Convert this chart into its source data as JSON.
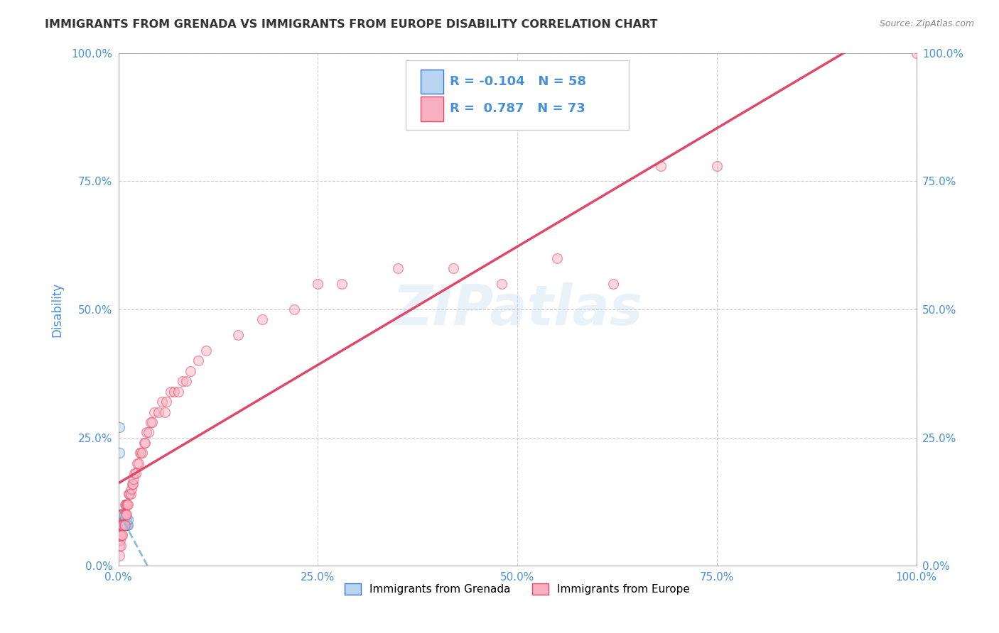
{
  "title": "IMMIGRANTS FROM GRENADA VS IMMIGRANTS FROM EUROPE DISABILITY CORRELATION CHART",
  "source": "Source: ZipAtlas.com",
  "ylabel": "Disability",
  "xlabel": "",
  "watermark": "ZIPatlas",
  "legend_label1": "Immigrants from Grenada",
  "legend_label2": "Immigrants from Europe",
  "r1": -0.104,
  "n1": 58,
  "r2": 0.787,
  "n2": 73,
  "color1_face": "#b8d4f0",
  "color1_edge": "#3a78c9",
  "color2_face": "#f8b0c0",
  "color2_edge": "#e04868",
  "trendline1_color": "#90b8e0",
  "trendline2_color": "#e04868",
  "background_color": "#ffffff",
  "grid_color": "#cccccc",
  "title_color": "#333333",
  "tick_color": "#4a90d9",
  "ylabel_color": "#4a90d9",
  "grenada_x": [
    0.001,
    0.001,
    0.001,
    0.001,
    0.002,
    0.002,
    0.002,
    0.002,
    0.002,
    0.002,
    0.002,
    0.002,
    0.003,
    0.003,
    0.003,
    0.003,
    0.003,
    0.003,
    0.003,
    0.003,
    0.003,
    0.003,
    0.003,
    0.003,
    0.003,
    0.003,
    0.003,
    0.004,
    0.004,
    0.004,
    0.004,
    0.004,
    0.004,
    0.004,
    0.004,
    0.004,
    0.005,
    0.005,
    0.005,
    0.005,
    0.005,
    0.005,
    0.005,
    0.006,
    0.006,
    0.006,
    0.006,
    0.007,
    0.007,
    0.008,
    0.008,
    0.009,
    0.009,
    0.01,
    0.01,
    0.011,
    0.012,
    0.012
  ],
  "grenada_y": [
    0.27,
    0.22,
    0.1,
    0.08,
    0.08,
    0.08,
    0.08,
    0.08,
    0.08,
    0.09,
    0.09,
    0.09,
    0.08,
    0.08,
    0.08,
    0.08,
    0.08,
    0.08,
    0.08,
    0.09,
    0.09,
    0.09,
    0.1,
    0.1,
    0.1,
    0.1,
    0.1,
    0.08,
    0.08,
    0.08,
    0.09,
    0.09,
    0.09,
    0.1,
    0.1,
    0.1,
    0.08,
    0.08,
    0.08,
    0.09,
    0.09,
    0.1,
    0.1,
    0.08,
    0.08,
    0.09,
    0.09,
    0.08,
    0.09,
    0.08,
    0.09,
    0.08,
    0.09,
    0.08,
    0.09,
    0.08,
    0.08,
    0.09
  ],
  "europe_x": [
    0.001,
    0.001,
    0.002,
    0.002,
    0.002,
    0.003,
    0.003,
    0.003,
    0.003,
    0.004,
    0.004,
    0.005,
    0.005,
    0.005,
    0.006,
    0.006,
    0.007,
    0.007,
    0.008,
    0.008,
    0.008,
    0.009,
    0.009,
    0.01,
    0.01,
    0.011,
    0.012,
    0.013,
    0.014,
    0.015,
    0.016,
    0.017,
    0.018,
    0.019,
    0.02,
    0.022,
    0.023,
    0.025,
    0.027,
    0.028,
    0.03,
    0.032,
    0.033,
    0.035,
    0.038,
    0.04,
    0.042,
    0.045,
    0.05,
    0.055,
    0.058,
    0.06,
    0.065,
    0.07,
    0.075,
    0.08,
    0.085,
    0.09,
    0.1,
    0.11,
    0.15,
    0.18,
    0.22,
    0.25,
    0.28,
    0.35,
    0.42,
    0.48,
    0.55,
    0.62,
    0.68,
    0.75,
    1.0
  ],
  "europe_y": [
    0.02,
    0.04,
    0.05,
    0.06,
    0.08,
    0.04,
    0.06,
    0.08,
    0.1,
    0.06,
    0.08,
    0.06,
    0.08,
    0.1,
    0.08,
    0.1,
    0.08,
    0.1,
    0.08,
    0.1,
    0.12,
    0.1,
    0.12,
    0.1,
    0.12,
    0.12,
    0.12,
    0.14,
    0.14,
    0.14,
    0.15,
    0.16,
    0.16,
    0.17,
    0.18,
    0.18,
    0.2,
    0.2,
    0.22,
    0.22,
    0.22,
    0.24,
    0.24,
    0.26,
    0.26,
    0.28,
    0.28,
    0.3,
    0.3,
    0.32,
    0.3,
    0.32,
    0.34,
    0.34,
    0.34,
    0.36,
    0.36,
    0.38,
    0.4,
    0.42,
    0.45,
    0.48,
    0.5,
    0.55,
    0.55,
    0.58,
    0.58,
    0.55,
    0.6,
    0.55,
    0.78,
    0.78,
    1.0
  ],
  "xlim": [
    0.0,
    1.0
  ],
  "ylim": [
    0.0,
    1.0
  ],
  "xticks": [
    0.0,
    0.25,
    0.5,
    0.75,
    1.0
  ],
  "yticks": [
    0.0,
    0.25,
    0.5,
    0.75,
    1.0
  ],
  "xtick_labels": [
    "0.0%",
    "25.0%",
    "50.0%",
    "75.0%",
    "100.0%"
  ],
  "ytick_labels": [
    "0.0%",
    "25.0%",
    "50.0%",
    "75.0%",
    "100.0%"
  ],
  "marker_size": 100,
  "marker_alpha": 0.5,
  "marker_linewidth": 1.0
}
